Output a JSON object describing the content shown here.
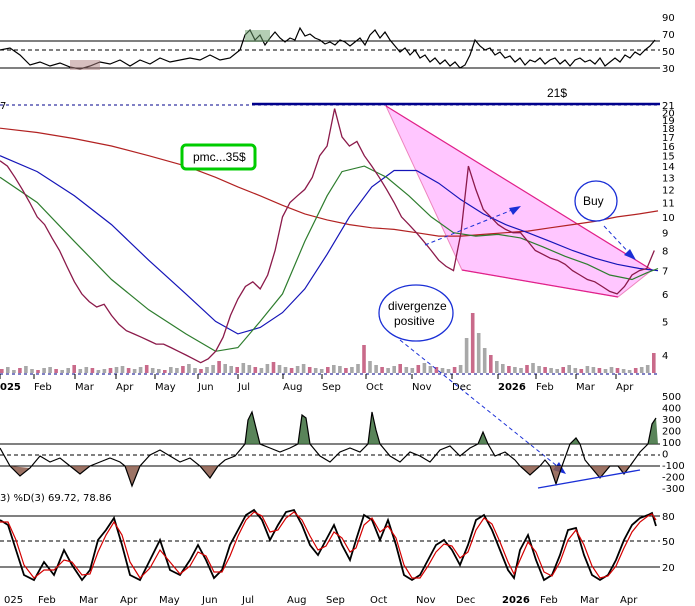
{
  "chart_data": [
    {
      "type": "line",
      "panel": "rsi-top",
      "ticks": [
        90,
        70,
        50,
        30
      ],
      "ylim": [
        10,
        100
      ],
      "levels": [
        70,
        50,
        30
      ]
    },
    {
      "type": "line",
      "panel": "price",
      "scale": "log",
      "ylim": [
        3.5,
        21.5
      ],
      "ticks": [
        21,
        20,
        19,
        18,
        17,
        16,
        15,
        14,
        13,
        12,
        11,
        10,
        9,
        8,
        7,
        6,
        5,
        4
      ],
      "top_left_label": "7",
      "resistance_label": "21$",
      "months": [
        "025",
        "Feb",
        "Mar",
        "Apr",
        "May",
        "Jun",
        "Jul",
        "Aug",
        "Sep",
        "Oct",
        "Nov",
        "Dec",
        "2026",
        "Feb",
        "Mar",
        "Apr"
      ],
      "annotations": {
        "pmc": "pmc...35$",
        "buy": "Buy",
        "divergence_line1": "divergenze",
        "divergence_line2": "positive"
      },
      "price_points": [
        [
          0,
          14.5
        ],
        [
          4,
          14
        ],
        [
          8,
          13
        ],
        [
          12,
          12
        ],
        [
          16,
          11
        ],
        [
          20,
          10
        ],
        [
          24,
          9.5
        ],
        [
          28,
          8.7
        ],
        [
          32,
          8
        ],
        [
          36,
          7.2
        ],
        [
          40,
          6.5
        ],
        [
          44,
          6
        ],
        [
          48,
          5.7
        ],
        [
          52,
          5.5
        ],
        [
          56,
          5.6
        ],
        [
          60,
          5.2
        ],
        [
          64,
          4.9
        ],
        [
          68,
          4.7
        ],
        [
          72,
          4.6
        ],
        [
          76,
          4.5
        ],
        [
          80,
          4.4
        ],
        [
          84,
          4.3
        ],
        [
          88,
          4.3
        ],
        [
          92,
          4.2
        ],
        [
          96,
          4.1
        ],
        [
          100,
          4
        ],
        [
          104,
          3.9
        ],
        [
          108,
          3.8
        ],
        [
          112,
          3.9
        ],
        [
          116,
          4.1
        ],
        [
          120,
          4.5
        ],
        [
          124,
          5.2
        ],
        [
          128,
          5.8
        ],
        [
          132,
          6.3
        ],
        [
          136,
          6.5
        ],
        [
          140,
          6.2
        ],
        [
          144,
          6.8
        ],
        [
          148,
          8
        ],
        [
          152,
          10
        ],
        [
          156,
          11
        ],
        [
          160,
          11.5
        ],
        [
          164,
          12
        ],
        [
          168,
          13
        ],
        [
          172,
          15
        ],
        [
          176,
          16
        ],
        [
          180,
          20.5
        ],
        [
          184,
          17
        ],
        [
          188,
          16
        ],
        [
          192,
          16.5
        ],
        [
          196,
          15
        ],
        [
          200,
          14
        ],
        [
          204,
          13
        ],
        [
          208,
          12
        ],
        [
          212,
          11
        ],
        [
          216,
          10
        ],
        [
          220,
          9.5
        ],
        [
          224,
          9
        ],
        [
          228,
          8.5
        ],
        [
          232,
          8
        ],
        [
          236,
          7.5
        ],
        [
          240,
          7.2
        ],
        [
          244,
          7
        ],
        [
          248,
          9
        ],
        [
          252,
          14
        ],
        [
          256,
          12
        ],
        [
          260,
          10.5
        ],
        [
          264,
          10
        ],
        [
          268,
          9.5
        ],
        [
          272,
          9.2
        ],
        [
          276,
          9
        ],
        [
          280,
          9
        ],
        [
          284,
          8.5
        ],
        [
          288,
          8
        ],
        [
          292,
          7.8
        ],
        [
          296,
          7.6
        ],
        [
          300,
          7.5
        ],
        [
          304,
          7.3
        ],
        [
          308,
          7
        ],
        [
          312,
          6.8
        ],
        [
          316,
          6.6
        ],
        [
          320,
          6.5
        ],
        [
          324,
          6.3
        ],
        [
          328,
          6.1
        ],
        [
          332,
          6
        ],
        [
          336,
          6.3
        ],
        [
          340,
          6.8
        ],
        [
          344,
          7
        ],
        [
          348,
          7.1
        ],
        [
          352,
          8
        ]
      ],
      "ma_short_points": [
        [
          0,
          13
        ],
        [
          20,
          11
        ],
        [
          40,
          8.5
        ],
        [
          60,
          6.6
        ],
        [
          80,
          5.4
        ],
        [
          100,
          4.6
        ],
        [
          116,
          4.1
        ],
        [
          128,
          4.2
        ],
        [
          140,
          5
        ],
        [
          152,
          6
        ],
        [
          164,
          8.5
        ],
        [
          176,
          11.5
        ],
        [
          184,
          13.5
        ],
        [
          196,
          14
        ],
        [
          208,
          13
        ],
        [
          220,
          11.5
        ],
        [
          232,
          10
        ],
        [
          244,
          9
        ],
        [
          256,
          8.8
        ],
        [
          268,
          8.9
        ],
        [
          280,
          8.7
        ],
        [
          292,
          8.2
        ],
        [
          304,
          7.7
        ],
        [
          316,
          7.3
        ],
        [
          328,
          6.8
        ],
        [
          340,
          6.6
        ],
        [
          348,
          6.9
        ],
        [
          354,
          7.1
        ]
      ],
      "ma_mid_points": [
        [
          0,
          15
        ],
        [
          20,
          13.5
        ],
        [
          40,
          11.5
        ],
        [
          60,
          9.5
        ],
        [
          80,
          7.5
        ],
        [
          100,
          6
        ],
        [
          116,
          5
        ],
        [
          128,
          4.6
        ],
        [
          140,
          4.8
        ],
        [
          152,
          5.3
        ],
        [
          164,
          6.2
        ],
        [
          176,
          7.8
        ],
        [
          188,
          10
        ],
        [
          200,
          12.2
        ],
        [
          212,
          13.6
        ],
        [
          224,
          13.6
        ],
        [
          236,
          12.5
        ],
        [
          248,
          11.2
        ],
        [
          260,
          10.2
        ],
        [
          272,
          9.5
        ],
        [
          284,
          9
        ],
        [
          296,
          8.5
        ],
        [
          308,
          8
        ],
        [
          320,
          7.6
        ],
        [
          332,
          7.3
        ],
        [
          344,
          7.1
        ],
        [
          354,
          7
        ]
      ],
      "ma_long_points": [
        [
          0,
          18
        ],
        [
          20,
          17.5
        ],
        [
          40,
          16.8
        ],
        [
          60,
          16
        ],
        [
          80,
          15
        ],
        [
          100,
          14
        ],
        [
          116,
          13
        ],
        [
          128,
          12.2
        ],
        [
          140,
          11.5
        ],
        [
          152,
          10.8
        ],
        [
          164,
          10.2
        ],
        [
          176,
          9.8
        ],
        [
          188,
          9.5
        ],
        [
          200,
          9.3
        ],
        [
          212,
          9.2
        ],
        [
          224,
          9
        ],
        [
          236,
          8.8
        ],
        [
          248,
          8.8
        ],
        [
          260,
          8.9
        ],
        [
          272,
          9
        ],
        [
          284,
          9.1
        ],
        [
          296,
          9.3
        ],
        [
          308,
          9.5
        ],
        [
          320,
          9.7
        ],
        [
          332,
          10
        ],
        [
          344,
          10.2
        ],
        [
          354,
          10.4
        ]
      ]
    },
    {
      "type": "line",
      "panel": "cci",
      "ticks": [
        500,
        400,
        300,
        200,
        100,
        0,
        -100,
        -200,
        -300
      ],
      "ylim": [
        -350,
        520
      ],
      "levels": [
        100,
        0,
        -100
      ]
    },
    {
      "type": "line",
      "panel": "stochastic",
      "legend_text": "3) %D(3) 69.72, 78.86",
      "ticks": [
        80,
        50,
        20
      ],
      "ylim": [
        0,
        100
      ],
      "levels": [
        80,
        50,
        20
      ]
    }
  ]
}
